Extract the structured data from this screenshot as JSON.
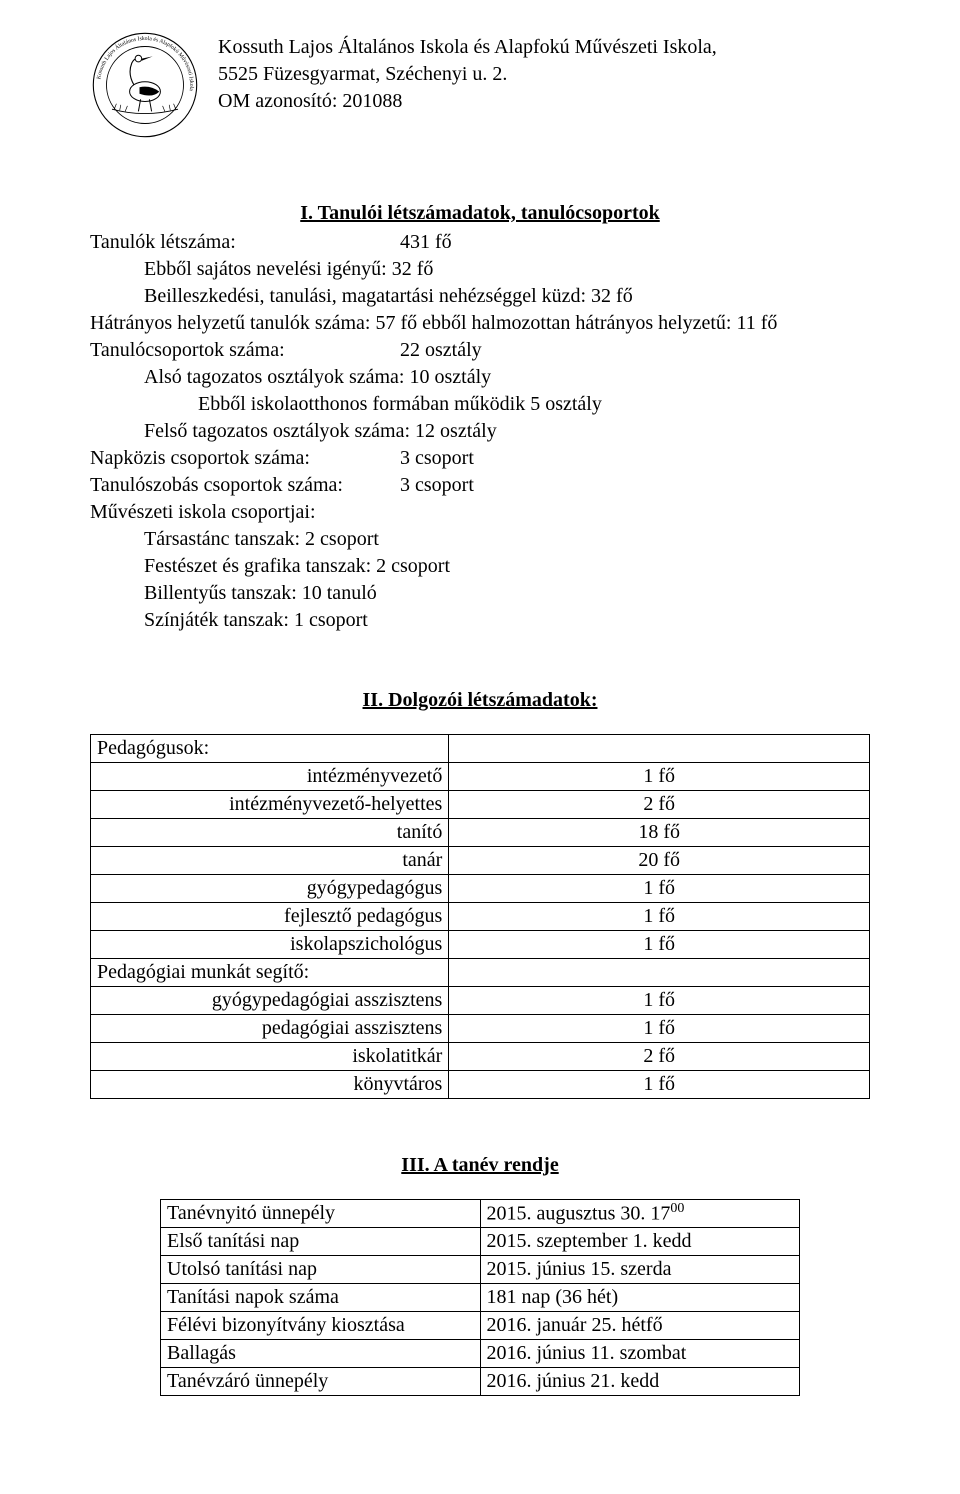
{
  "header": {
    "school_name": "Kossuth Lajos Általános Iskola és Alapfokú Művészeti Iskola,",
    "address": "5525 Füzesgyarmat, Széchenyi u. 2.",
    "om_id_label": "OM azonosító: 201088"
  },
  "section1": {
    "title": "I. Tanulói létszámadatok, tanulócsoportok",
    "students_total_label": "Tanulók létszáma:",
    "students_total_value": "431 fő",
    "special_needs": "Ebből sajátos nevelési igényű: 32 fő",
    "difficulties": "Beilleszkedési, tanulási, magatartási nehézséggel küzd: 32 fő",
    "disadvantaged": "Hátrányos helyzetű tanulók száma: 57 fő ebből halmozottan hátrányos helyzetű: 11 fő",
    "groups_label": "Tanulócsoportok száma:",
    "groups_value": "22 osztály",
    "lower_grades": "Alsó tagozatos osztályok száma: 10 osztály",
    "school_home": "Ebből iskolaotthonos formában működik 5 osztály",
    "upper_grades": "Felső tagozatos osztályok száma: 12 osztály",
    "daycare_label": "Napközis csoportok száma:",
    "daycare_value": "3 csoport",
    "studyroom_label": "Tanulószobás csoportok száma:",
    "studyroom_value": "3 csoport",
    "art_school_label": "Művészeti iskola csoportjai:",
    "art1": "Társastánc tanszak: 2 csoport",
    "art2": "Festészet és grafika tanszak: 2 csoport",
    "art3": "Billentyűs tanszak: 10 tanuló",
    "art4": "Színjáték tanszak: 1 csoport"
  },
  "section2": {
    "title": "II. Dolgozói létszámadatok:",
    "rows": [
      {
        "role": "Pedagógusok:",
        "count": "",
        "left": true
      },
      {
        "role": "intézményvezető",
        "count": "1 fő"
      },
      {
        "role": "intézményvezető-helyettes",
        "count": "2 fő"
      },
      {
        "role": "tanító",
        "count": "18 fő"
      },
      {
        "role": "tanár",
        "count": "20 fő"
      },
      {
        "role": "gyógypedagógus",
        "count": "1 fő"
      },
      {
        "role": "fejlesztő pedagógus",
        "count": "1 fő"
      },
      {
        "role": "iskolapszichológus",
        "count": "1 fő"
      },
      {
        "role": "Pedagógiai munkát segítő:",
        "count": "",
        "left": true
      },
      {
        "role": "gyógypedagógiai asszisztens",
        "count": "1 fő"
      },
      {
        "role": "pedagógiai asszisztens",
        "count": "1 fő"
      },
      {
        "role": "iskolatitkár",
        "count": "2 fő"
      },
      {
        "role": "könyvtáros",
        "count": "1 fő"
      }
    ]
  },
  "section3": {
    "title": "III. A tanév rendje",
    "rows": [
      {
        "event": "Tanévnyitó ünnepély",
        "date_html": "2015. augusztus 30. 17<sup>00</sup>"
      },
      {
        "event": "Első tanítási nap",
        "date_html": "2015. szeptember 1. kedd"
      },
      {
        "event": "Utolsó tanítási nap",
        "date_html": "2015. június 15. szerda"
      },
      {
        "event": "Tanítási napok száma",
        "date_html": "181 nap (36 hét)"
      },
      {
        "event": "Félévi bizonyítvány kiosztása",
        "date_html": "2016. január 25. hétfő"
      },
      {
        "event": "Ballagás",
        "date_html": "2016. június 11. szombat"
      },
      {
        "event": "Tanévzáró ünnepély",
        "date_html": "2016. június 21. kedd"
      }
    ]
  }
}
